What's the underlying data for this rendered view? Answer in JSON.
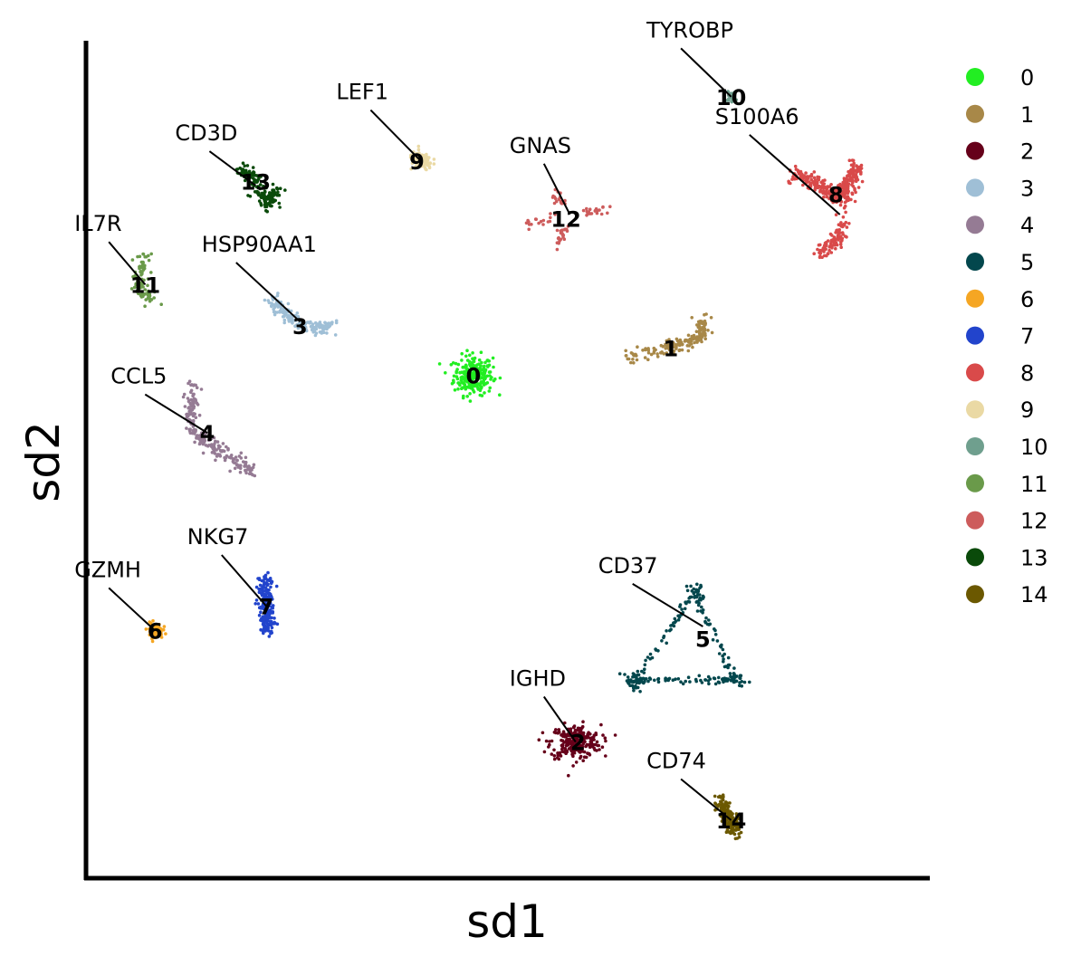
{
  "chart_data": {
    "type": "scatter",
    "title": "",
    "xlabel": "sd1",
    "ylabel": "sd2",
    "xlim": [
      0,
      100
    ],
    "ylim": [
      0,
      100
    ],
    "grid": false,
    "legend_placement": "right",
    "clusters": [
      {
        "id": "0",
        "color": "#22ee22",
        "center": [
          47.5,
          60.5
        ],
        "label": [
          47.5,
          60.5
        ],
        "marker": "",
        "marker_pos": null,
        "shape": "blob",
        "spread": [
          2.0,
          2.0
        ],
        "n": 250
      },
      {
        "id": "1",
        "color": "#a88848",
        "center": [
          72.8,
          63.6
        ],
        "label": [
          72.0,
          63.8
        ],
        "marker": "",
        "marker_pos": null,
        "shape": "line",
        "pts": [
          [
            66.5,
            62.8
          ],
          [
            72.0,
            63.8
          ],
          [
            75.5,
            65.0
          ],
          [
            76.0,
            67.5
          ]
        ],
        "n": 160
      },
      {
        "id": "2",
        "color": "#66001a",
        "center": [
          60.2,
          16.0
        ],
        "label": [
          60.5,
          16.0
        ],
        "marker": "IGHD",
        "marker_pos": [
          52.0,
          22.8
        ],
        "shape": "blob",
        "spread": [
          2.6,
          1.7
        ],
        "n": 260
      },
      {
        "id": "3",
        "color": "#9fbfd6",
        "center": [
          26.0,
          67.0
        ],
        "label": [
          26.0,
          66.5
        ],
        "marker": "HSP90AA1",
        "marker_pos": [
          13.8,
          75.5
        ],
        "shape": "line",
        "pts": [
          [
            22.5,
            69.5
          ],
          [
            24.5,
            67.8
          ],
          [
            27.5,
            66.0
          ],
          [
            30.5,
            66.5
          ]
        ],
        "n": 170
      },
      {
        "id": "4",
        "color": "#957b94",
        "center": [
          14.5,
          53.5
        ],
        "label": [
          14.5,
          53.5
        ],
        "marker": "CCL5",
        "marker_pos": [
          2.5,
          59.5
        ],
        "shape": "line",
        "pts": [
          [
            12.8,
            59.0
          ],
          [
            12.3,
            54.0
          ],
          [
            15.5,
            51.5
          ],
          [
            20.5,
            48.5
          ]
        ],
        "n": 210
      },
      {
        "id": "5",
        "color": "#03474d",
        "center": [
          76.0,
          30.0
        ],
        "label": [
          76.0,
          28.5
        ],
        "marker": "CD37",
        "marker_pos": [
          63.0,
          36.5
        ],
        "shape": "triangle",
        "pts": [
          [
            75.0,
            34.0
          ],
          [
            67.5,
            23.5
          ],
          [
            80.0,
            23.5
          ]
        ],
        "n": 240
      },
      {
        "id": "6",
        "color": "#f5a623",
        "center": [
          8.0,
          29.5
        ],
        "label": [
          8.0,
          29.5
        ],
        "marker": "GZMH",
        "marker_pos": [
          -2.0,
          36.0
        ],
        "shape": "blob",
        "spread": [
          0.8,
          0.8
        ],
        "n": 70
      },
      {
        "id": "7",
        "color": "#2244cc",
        "center": [
          21.8,
          32.5
        ],
        "label": [
          21.8,
          32.5
        ],
        "marker": "NKG7",
        "marker_pos": [
          12.0,
          40.0
        ],
        "shape": "line",
        "pts": [
          [
            21.6,
            35.8
          ],
          [
            21.8,
            32.0
          ],
          [
            22.0,
            29.5
          ]
        ],
        "n": 190
      },
      {
        "id": "8",
        "color": "#d94a4a",
        "center": [
          93.0,
          80.0
        ],
        "label": [
          92.5,
          82.5
        ],
        "marker": "S100A6",
        "marker_pos": [
          77.5,
          91.0
        ],
        "shape": "line",
        "pts": [
          [
            87.0,
            85.0
          ],
          [
            90.0,
            84.0
          ],
          [
            92.5,
            82.0
          ],
          [
            94.0,
            83.5
          ],
          [
            95.0,
            86.0
          ],
          [
            93.0,
            77.5
          ],
          [
            90.5,
            75.0
          ]
        ],
        "n": 420
      },
      {
        "id": "9",
        "color": "#ead9a4",
        "center": [
          41.0,
          86.5
        ],
        "label": [
          40.5,
          86.5
        ],
        "marker": "LEF1",
        "marker_pos": [
          30.5,
          94.0
        ],
        "shape": "blob",
        "spread": [
          1.2,
          0.9
        ],
        "n": 110
      },
      {
        "id": "10",
        "color": "#6f9f8e",
        "center": [
          79.5,
          94.3
        ],
        "label": [
          79.5,
          94.3
        ],
        "marker": "TYROBP",
        "marker_pos": [
          69.0,
          101.5
        ],
        "shape": "blob",
        "spread": [
          0.6,
          0.5
        ],
        "n": 30
      },
      {
        "id": "11",
        "color": "#6a9a4a",
        "center": [
          6.8,
          71.5
        ],
        "label": [
          6.8,
          71.5
        ],
        "marker": "IL7R",
        "marker_pos": [
          -2.0,
          78.0
        ],
        "shape": "line",
        "pts": [
          [
            6.8,
            74.8
          ],
          [
            5.8,
            71.5
          ],
          [
            7.8,
            69.5
          ]
        ],
        "n": 90
      },
      {
        "id": "12",
        "color": "#cd5c5c",
        "center": [
          59.5,
          80.0
        ],
        "label": [
          59.0,
          79.5
        ],
        "marker": "GNAS",
        "marker_pos": [
          52.0,
          87.5
        ],
        "shape": "cross",
        "pts": [
          [
            54.0,
            79.0
          ],
          [
            57.5,
            82.5
          ],
          [
            58.0,
            76.5
          ],
          [
            64.0,
            80.5
          ]
        ],
        "n": 80
      },
      {
        "id": "13",
        "color": "#0a4a0a",
        "center": [
          20.5,
          83.5
        ],
        "label": [
          20.5,
          84.0
        ],
        "marker": "CD3D",
        "marker_pos": [
          10.5,
          89.0
        ],
        "shape": "line",
        "pts": [
          [
            18.5,
            85.5
          ],
          [
            20.0,
            84.5
          ],
          [
            22.0,
            81.0
          ],
          [
            23.0,
            83.0
          ]
        ],
        "n": 170
      },
      {
        "id": "14",
        "color": "#6b5800",
        "center": [
          79.5,
          6.5
        ],
        "label": [
          79.5,
          6.5
        ],
        "marker": "CD74",
        "marker_pos": [
          69.0,
          12.8
        ],
        "shape": "line",
        "pts": [
          [
            78.0,
            9.0
          ],
          [
            79.5,
            6.5
          ],
          [
            80.0,
            5.0
          ]
        ],
        "n": 160
      }
    ]
  }
}
